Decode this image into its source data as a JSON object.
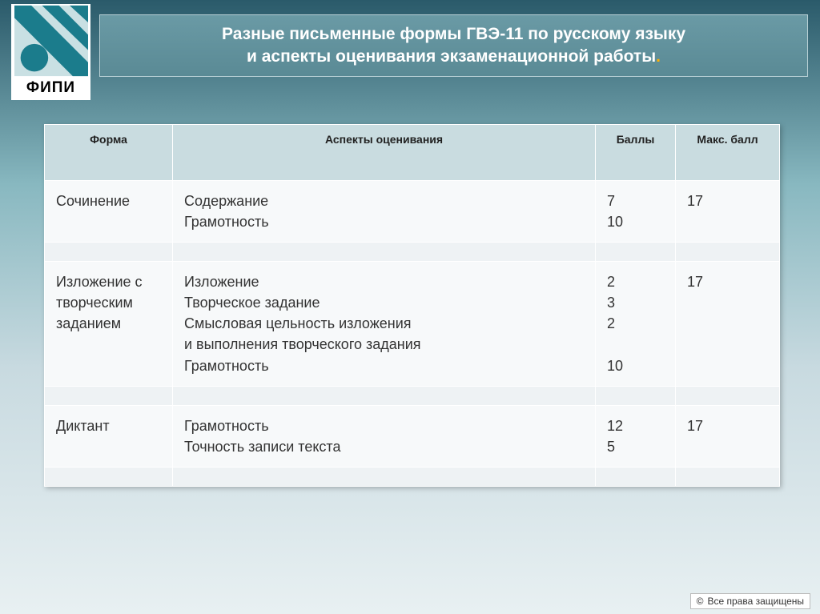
{
  "logo": {
    "text": "ФИПИ",
    "stripe_color": "#1b7c8c",
    "circle_color": "#1b7c8c",
    "bg": "#c9e0e3"
  },
  "title": {
    "line1": "Разные письменные формы ГВЭ-11 по русскому языку",
    "line2": "и аспекты оценивания экзаменационной работы",
    "trailing_dot": "."
  },
  "table": {
    "headers": {
      "form": "Форма",
      "aspects": "Аспекты оценивания",
      "points": "Баллы",
      "max": "Макс. балл"
    },
    "rows": [
      {
        "form": "Сочинение",
        "aspects": "Содержание\nГрамотность",
        "points": "7\n10",
        "max": "17"
      },
      {
        "form": "Изложение с творческим заданием",
        "aspects": "Изложение\nТворческое задание\nСмысловая цельность изложения\nи выполнения творческого задания\nГрамотность",
        "points": "2\n3\n2\n\n10",
        "max": "17"
      },
      {
        "form": "Диктант",
        "aspects": "Грамотность\nТочность записи текста",
        "points": "12\n5",
        "max": "17"
      }
    ]
  },
  "footer": {
    "text": "Все права защищены"
  },
  "colors": {
    "header_row_bg": "#c9dce0",
    "cell_bg": "#f7f9fa",
    "spacer_bg": "#eef2f4"
  }
}
